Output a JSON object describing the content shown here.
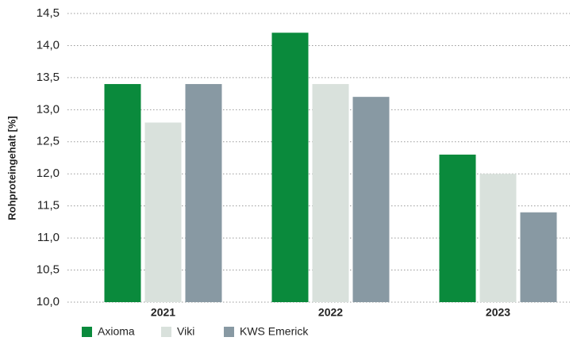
{
  "chart_data": {
    "type": "bar",
    "y_label": "Rohproteingehalt [%]",
    "categories": [
      "2021",
      "2022",
      "2023"
    ],
    "series": [
      {
        "name": "Axioma",
        "color": "#0a8a3c",
        "values": [
          13.4,
          14.2,
          12.3
        ]
      },
      {
        "name": "Viki",
        "color": "#d9e1dc",
        "values": [
          12.8,
          13.4,
          12.0
        ]
      },
      {
        "name": "KWS Emerick",
        "color": "#8899a3",
        "values": [
          13.4,
          13.2,
          11.4
        ]
      }
    ],
    "ylim": [
      10,
      14.5
    ],
    "yticks": [
      {
        "value": 10,
        "label": "10,0"
      },
      {
        "value": 10.5,
        "label": "10,5"
      },
      {
        "value": 11,
        "label": "11,0"
      },
      {
        "value": 11.5,
        "label": "11,5"
      },
      {
        "value": 12,
        "label": "12,0"
      },
      {
        "value": 12.5,
        "label": "12,5"
      },
      {
        "value": 13,
        "label": "13,0"
      },
      {
        "value": 13.5,
        "label": "13,5"
      },
      {
        "value": 14,
        "label": "14,0"
      },
      {
        "value": 14.5,
        "label": "14,5"
      }
    ],
    "grid": true,
    "legend": "bottom"
  }
}
